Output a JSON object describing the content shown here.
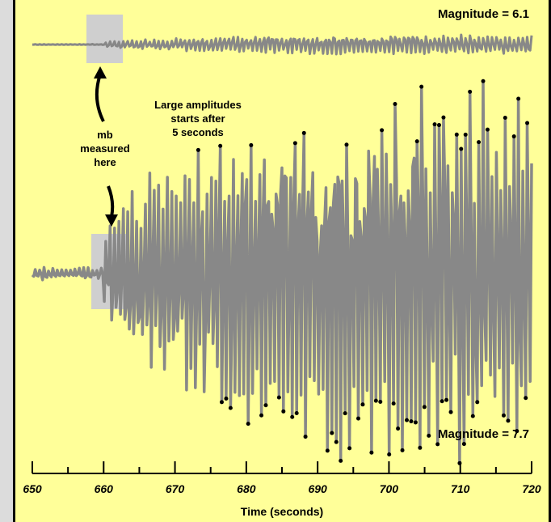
{
  "chart_data": [
    {
      "type": "line",
      "series": [
        {
          "name": "",
          "trace": "seismogram",
          "onset_x": 660,
          "amplitude_scale": 0.22
        }
      ],
      "annotations": {
        "magnitude_label": "Magnitude = 6.1"
      },
      "xlim": [
        650,
        720
      ]
    },
    {
      "type": "line",
      "series": [
        {
          "name": "",
          "trace": "seismogram",
          "onset_x": 660,
          "amplitude_scale": 1.0
        }
      ],
      "annotations": {
        "magnitude_label": "Magnitude = 7.7",
        "note_large": [
          "Large amplitudes",
          "starts after",
          "5 seconds"
        ],
        "note_mb": [
          "mb",
          "measured",
          "here"
        ]
      },
      "xlabel": "Time (seconds)",
      "xlim": [
        650,
        720
      ],
      "xticks": [
        650,
        660,
        670,
        680,
        690,
        700,
        710,
        720
      ],
      "xtick_labels": [
        "650",
        "660",
        "670",
        "680",
        "690",
        "700",
        "710",
        "720"
      ]
    }
  ],
  "colors": {
    "background": "#ffff99",
    "trace": "#888888",
    "window": "#cfcfcf",
    "page": "#dcdcdc"
  }
}
